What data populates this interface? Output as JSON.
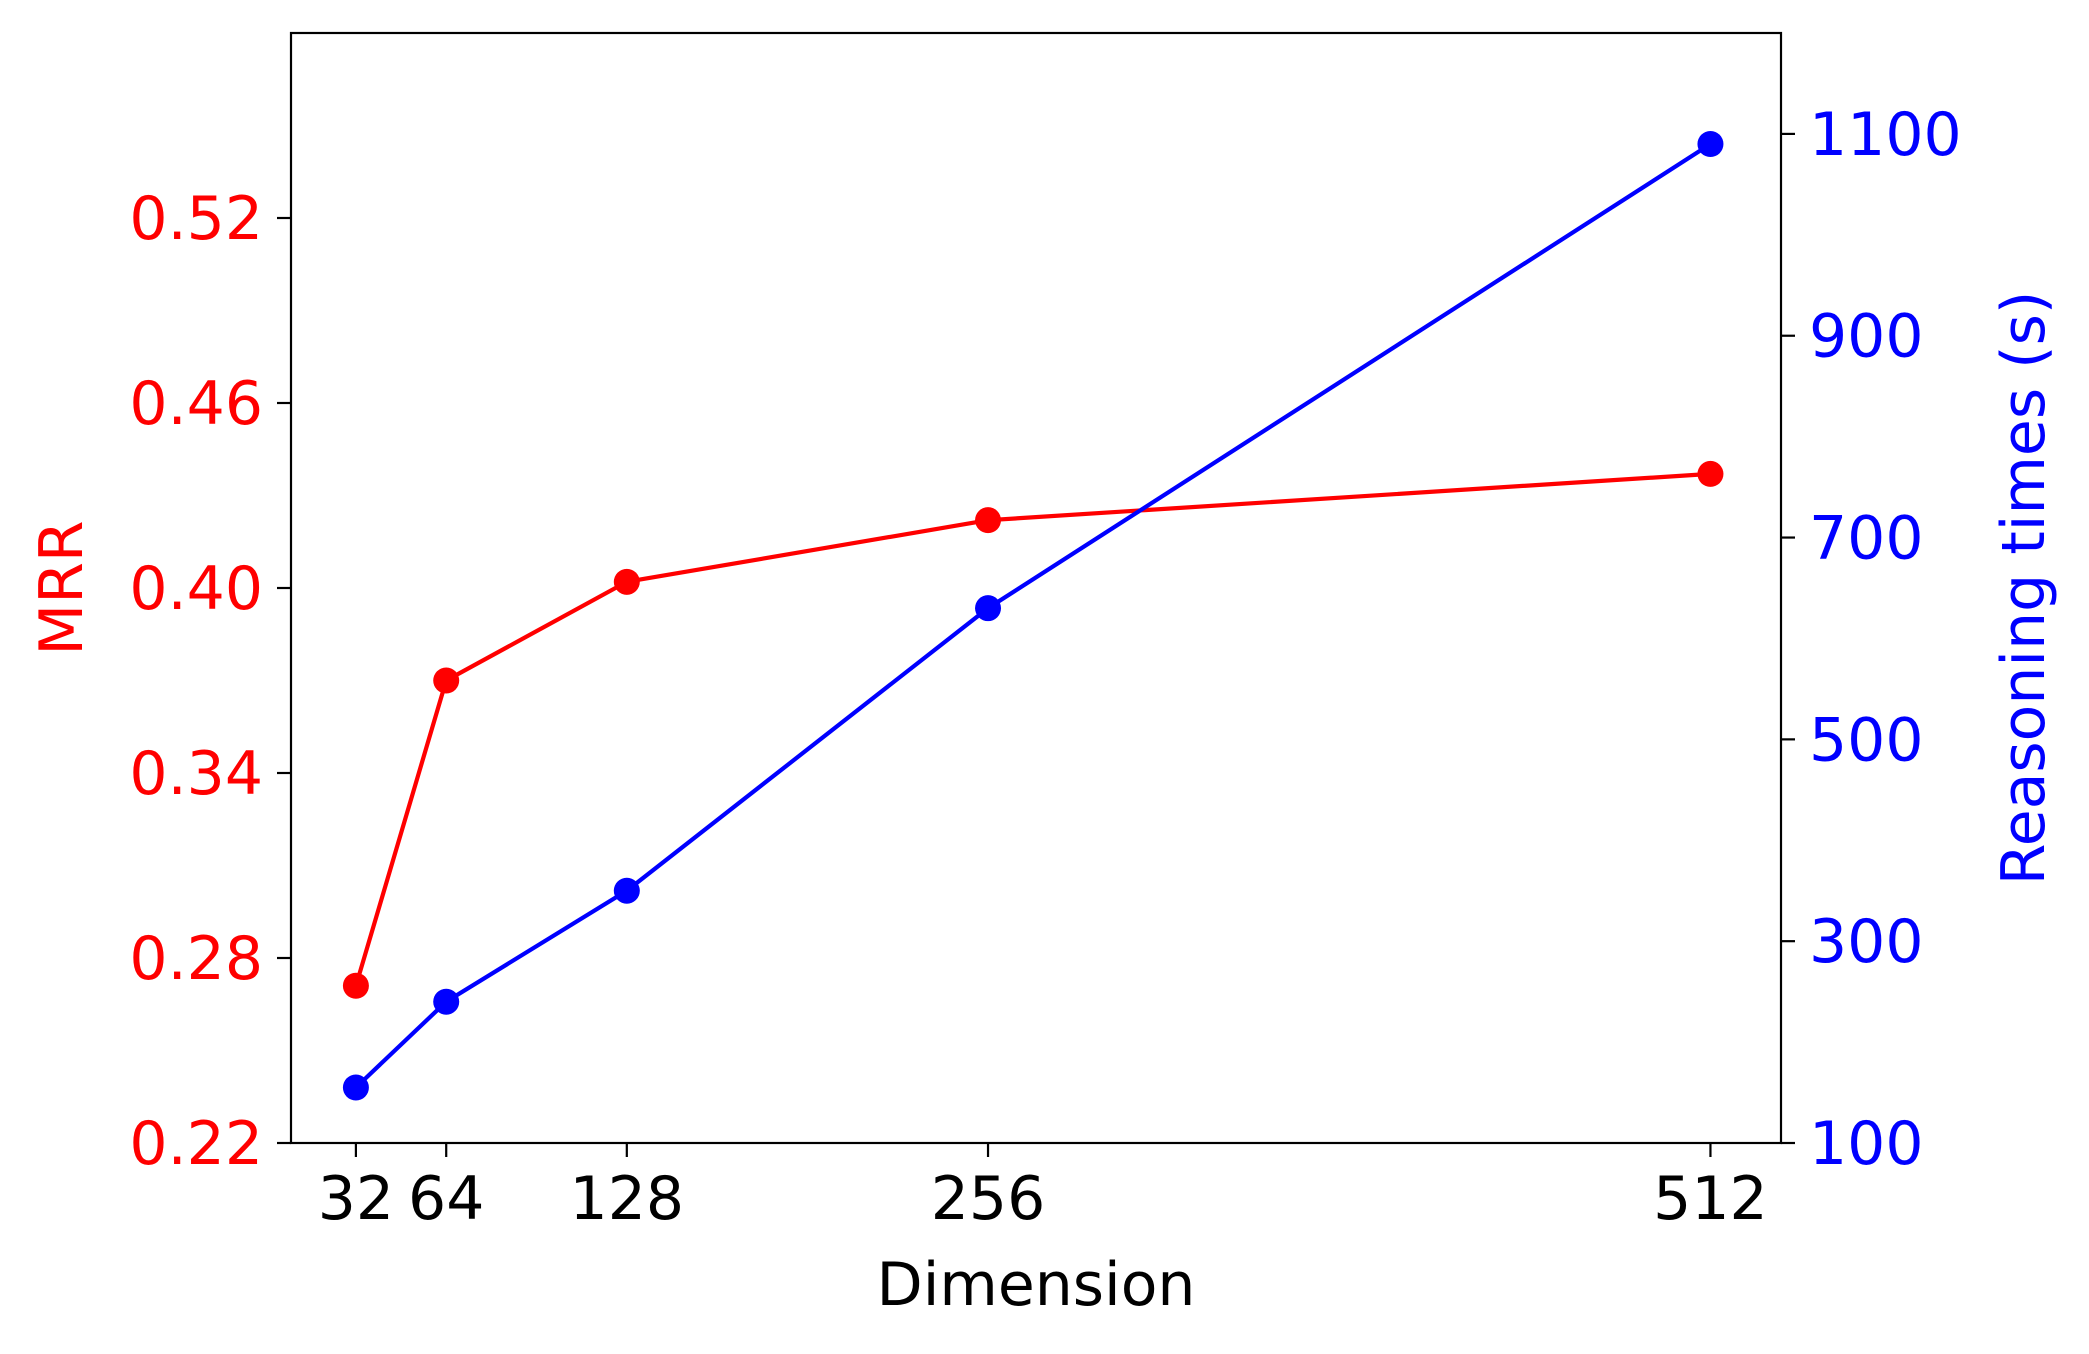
{
  "chart_data": {
    "type": "line",
    "x": [
      32,
      64,
      128,
      256,
      512
    ],
    "xticks": [
      "32",
      "64",
      "128",
      "256",
      "512"
    ],
    "xlabel": "Dimension",
    "series": [
      {
        "axis": "left",
        "color": "#ff0000",
        "values": [
          0.271,
          0.37,
          0.402,
          0.422,
          0.437
        ]
      },
      {
        "axis": "right",
        "color": "#0000ff",
        "values": [
          155,
          240,
          350,
          630,
          1090
        ]
      }
    ],
    "y_left": {
      "label": "MRR",
      "color": "#ff0000",
      "ylim": [
        0.22,
        0.58
      ],
      "ticks": [
        "0.22",
        "0.28",
        "0.34",
        "0.40",
        "0.46",
        "0.52"
      ]
    },
    "y_right": {
      "label": "Reasoning times (s)",
      "color": "#0000ff",
      "ylim": [
        100,
        1200
      ],
      "ticks": [
        "100",
        "300",
        "500",
        "700",
        "900",
        "1100"
      ]
    },
    "grid": false,
    "legend": "none"
  }
}
